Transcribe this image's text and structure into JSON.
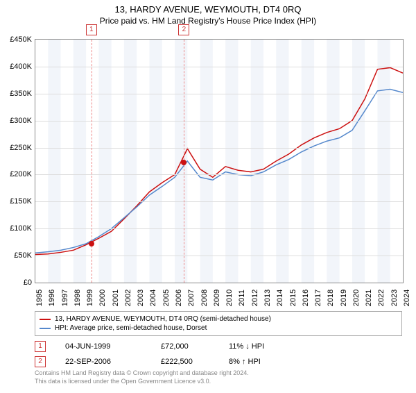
{
  "title": "13, HARDY AVENUE, WEYMOUTH, DT4 0RQ",
  "subtitle": "Price paid vs. HM Land Registry's House Price Index (HPI)",
  "chart": {
    "type": "line",
    "background_color": "#ffffff",
    "grid_color": "#dddddd",
    "border_color": "#888888",
    "alt_band_color": "#f2f5fa",
    "x_years": [
      1995,
      1996,
      1997,
      1998,
      1999,
      2000,
      2001,
      2002,
      2003,
      2004,
      2005,
      2006,
      2007,
      2008,
      2009,
      2010,
      2011,
      2012,
      2013,
      2014,
      2015,
      2016,
      2017,
      2018,
      2019,
      2020,
      2021,
      2022,
      2023,
      2024
    ],
    "ylim": [
      0,
      450000
    ],
    "ytick_step": 50000,
    "ytick_labels": [
      "£0",
      "£50K",
      "£100K",
      "£150K",
      "£200K",
      "£250K",
      "£300K",
      "£350K",
      "£400K",
      "£450K"
    ],
    "series": [
      {
        "name": "13, HARDY AVENUE, WEYMOUTH, DT4 0RQ (semi-detached house)",
        "color": "#cc1111",
        "line_width": 1.5,
        "values": [
          52000,
          53000,
          56000,
          60000,
          70000,
          82000,
          95000,
          118000,
          142000,
          168000,
          185000,
          200000,
          248000,
          210000,
          195000,
          215000,
          208000,
          205000,
          210000,
          225000,
          238000,
          255000,
          268000,
          278000,
          285000,
          300000,
          340000,
          395000,
          398000,
          388000
        ]
      },
      {
        "name": "HPI: Average price, semi-detached house, Dorset",
        "color": "#5588cc",
        "line_width": 1.5,
        "values": [
          55000,
          57000,
          60000,
          65000,
          72000,
          85000,
          100000,
          120000,
          140000,
          162000,
          178000,
          195000,
          225000,
          195000,
          190000,
          205000,
          200000,
          198000,
          205000,
          218000,
          228000,
          242000,
          253000,
          262000,
          268000,
          282000,
          318000,
          355000,
          358000,
          352000
        ]
      }
    ],
    "events": [
      {
        "n": "1",
        "year_frac": 1999.42,
        "date": "04-JUN-1999",
        "price": "£72,000",
        "delta": "11% ↓ HPI",
        "price_val": 72000
      },
      {
        "n": "2",
        "year_frac": 2006.73,
        "date": "22-SEP-2006",
        "price": "£222,500",
        "delta": "8% ↑ HPI",
        "price_val": 222500
      }
    ],
    "title_fontsize": 13,
    "label_fontsize": 11
  },
  "legend": {
    "series1": "13, HARDY AVENUE, WEYMOUTH, DT4 0RQ (semi-detached house)",
    "series2": "HPI: Average price, semi-detached house, Dorset"
  },
  "footer": {
    "line1": "Contains HM Land Registry data © Crown copyright and database right 2024.",
    "line2": "This data is licensed under the Open Government Licence v3.0."
  }
}
